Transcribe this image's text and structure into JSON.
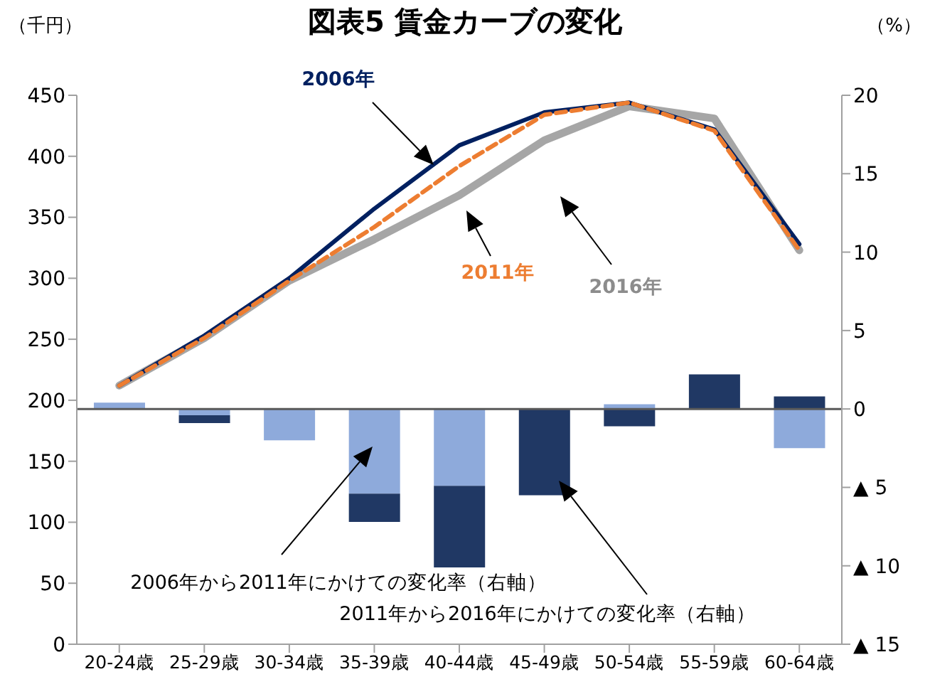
{
  "chart_data": {
    "type": "line",
    "title": "図表5 賃金カーブの変化",
    "ylabel": "（千円）",
    "y2label": "（%）",
    "categories": [
      "20-24歳",
      "25-29歳",
      "30-34歳",
      "35-39歳",
      "40-44歳",
      "45-49歳",
      "50-54歳",
      "55-59歳",
      "60-64歳"
    ],
    "series": [
      {
        "name": "2006年から2011年にかけての変化率（右軸）",
        "type": "bar",
        "axis": "y2",
        "color": "#8eaadb",
        "values": [
          0.4,
          -0.4,
          -2.0,
          -5.4,
          -4.9,
          null,
          0.3,
          null,
          -2.5
        ]
      },
      {
        "name": "2011年から2016年にかけての変化率（右軸）",
        "type": "bar",
        "axis": "y2",
        "color": "#203864",
        "values": [
          null,
          -0.5,
          null,
          -1.8,
          -5.2,
          -5.5,
          -1.1,
          2.2,
          0.8
        ]
      },
      {
        "name": "2006年",
        "color": "#002060",
        "values": [
          212,
          253,
          300,
          357,
          409,
          436,
          444,
          422,
          328
        ]
      },
      {
        "name": "2011年",
        "line_style": "dashed",
        "color": "#ed7d31",
        "values": [
          212,
          251,
          298,
          342,
          392,
          434,
          444,
          421,
          323
        ]
      },
      {
        "name": "2016年",
        "color": "#a6a6a6",
        "values": [
          212,
          251,
          298,
          332,
          368,
          413,
          441,
          431,
          323
        ]
      }
    ],
    "stacked": true,
    "ylim": [
      0,
      450
    ],
    "yticks": [
      0,
      50,
      100,
      150,
      200,
      250,
      300,
      350,
      400,
      450
    ],
    "y2lim": [
      -15,
      20
    ],
    "y2ticks": [
      {
        "value": -15,
        "label": "▲ 15"
      },
      {
        "value": -10,
        "label": "▲ 10"
      },
      {
        "value": -5,
        "label": "▲ 5"
      },
      0,
      5,
      10,
      15,
      20
    ],
    "ref_lines": [
      {
        "axis": "y2",
        "value": 0,
        "color": "#595959"
      }
    ],
    "grid": false,
    "legend": false,
    "marker": "none"
  }
}
